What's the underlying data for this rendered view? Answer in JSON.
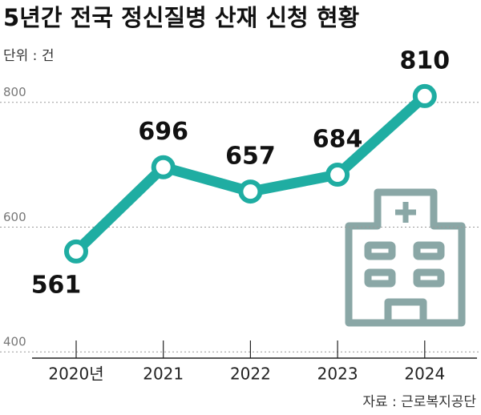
{
  "chart_data": {
    "type": "line",
    "title": "5년간 전국 정신질병 산재 신청 현황",
    "unit": "단위 : 건",
    "source": "자료 : 근로복지공단",
    "categories": [
      "2020년",
      "2021",
      "2022",
      "2023",
      "2024"
    ],
    "values": [
      561,
      696,
      657,
      684,
      810
    ],
    "color": "#1fada2",
    "ylim": [
      390,
      860
    ],
    "yticks": [
      400,
      600,
      800
    ],
    "grid": true
  }
}
